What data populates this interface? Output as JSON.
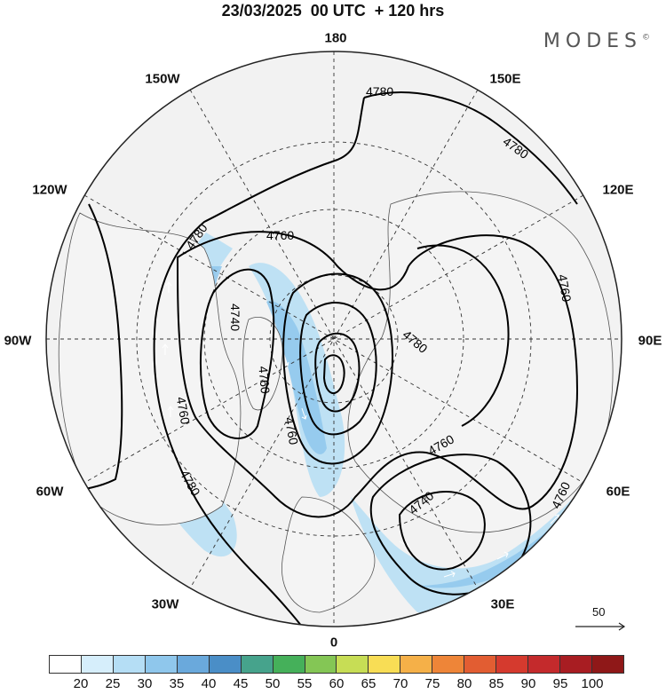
{
  "header": {
    "title": "23/03/2025  00 UTC  + 120 hrs",
    "brand": "MODES",
    "brand_mark": "©"
  },
  "map": {
    "projection": "north-polar-stereographic",
    "longitude_labels": {
      "top": "180",
      "top_left": "150W",
      "top_right": "150E",
      "upper_left": "120W",
      "upper_right": "120E",
      "left": "90W",
      "right": "90E",
      "lower_left": "60W",
      "lower_right": "60E",
      "bottom_left": "30W",
      "bottom_right": "30E",
      "bottom": "0"
    },
    "contour_labels": [
      "4780",
      "4780",
      "4760",
      "4780",
      "4740",
      "4760",
      "4780",
      "4760",
      "4760",
      "4760",
      "4780",
      "4760",
      "4740",
      "4760",
      "4780"
    ],
    "wind_scale_label": "50"
  },
  "colorbar": {
    "values": [
      "20",
      "25",
      "30",
      "35",
      "40",
      "45",
      "50",
      "55",
      "60",
      "65",
      "70",
      "75",
      "80",
      "85",
      "90",
      "95",
      "100"
    ],
    "colors": [
      "#ffffff",
      "#d6eefb",
      "#b5def5",
      "#8fc7ec",
      "#6aa9dc",
      "#4a8ec7",
      "#46a38c",
      "#45b05a",
      "#84c655",
      "#c7dd55",
      "#f8dd55",
      "#f5b048",
      "#ee8538",
      "#e25d32",
      "#d53a2e",
      "#c42a2c",
      "#a81d22",
      "#8f1818"
    ]
  }
}
